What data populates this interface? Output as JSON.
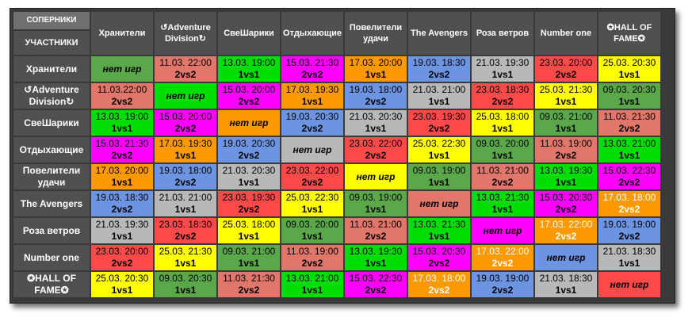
{
  "corner": {
    "top": "СОПЕРНИКИ",
    "bottom": "УЧАСТНИКИ"
  },
  "teams": [
    "Хранители",
    "↺Adventure Division↻",
    "СвеШарики",
    "Отдыхающие",
    "Повелители удачи",
    "The Avengers",
    "Роза ветров",
    "Number one",
    "✪HALL OF FAME✪"
  ],
  "no_games_label": "нет игр",
  "colors": {
    "green": "#00dd00",
    "darkgreen": "#5aa84a",
    "salmon": "#e0776a",
    "magenta": "#ff00ff",
    "orange": "#ff9900",
    "blue": "#6c94e0",
    "gray": "#b8b8b8",
    "red": "#ff4a4a",
    "yellow": "#ffff00",
    "header": "#505050"
  },
  "rows": [
    [
      {
        "t": "none",
        "c": "darkgreen"
      },
      {
        "d": "11.03. 22:00",
        "m": "2vs2",
        "c": "salmon"
      },
      {
        "d": "13.03. 19:00",
        "m": "1vs1",
        "c": "green"
      },
      {
        "d": "15.03. 21:30",
        "m": "2vs2",
        "c": "magenta"
      },
      {
        "d": "17.03. 20:00",
        "m": "1vs1",
        "c": "orange"
      },
      {
        "d": "19.03. 18:30",
        "m": "2vs2",
        "c": "blue"
      },
      {
        "d": "21.03. 19:30",
        "m": "1vs1",
        "c": "gray"
      },
      {
        "d": "23.03. 20:00",
        "m": "2vs2",
        "c": "red"
      },
      {
        "d": "25.03. 20:30",
        "m": "1vs1",
        "c": "yellow"
      }
    ],
    [
      {
        "d": "11.03.22:00",
        "m": "2vs2",
        "c": "salmon"
      },
      {
        "t": "none",
        "c": "green"
      },
      {
        "d": "15.03. 20:00",
        "m": "2vs2",
        "c": "magenta"
      },
      {
        "d": "17.03. 19:30",
        "m": "1vs1",
        "c": "orange"
      },
      {
        "d": "19.03. 18:00",
        "m": "2vs2",
        "c": "blue"
      },
      {
        "d": "21.03. 21:00",
        "m": "1vs1",
        "c": "gray"
      },
      {
        "d": "23.03. 18:30",
        "m": "2vs2",
        "c": "red"
      },
      {
        "d": "25.03. 21:30",
        "m": "1vs1",
        "c": "yellow"
      },
      {
        "d": "09.03. 20:30",
        "m": "1vs1",
        "c": "darkgreen"
      }
    ],
    [
      {
        "d": "13.03. 19:00",
        "m": "1vs1",
        "c": "green"
      },
      {
        "d": "15.03. 20:00",
        "m": "2vs2",
        "c": "magenta"
      },
      {
        "t": "none",
        "c": "orange"
      },
      {
        "d": "19.03. 20:30",
        "m": "2vs2",
        "c": "blue"
      },
      {
        "d": "21.03. 20:30",
        "m": "1vs1",
        "c": "gray"
      },
      {
        "d": "23.03. 19:30",
        "m": "2vs2",
        "c": "red"
      },
      {
        "d": "25.03. 18:00",
        "m": "1vs1",
        "c": "yellow"
      },
      {
        "d": "09.03. 21:00",
        "m": "1vs1",
        "c": "darkgreen"
      },
      {
        "d": "11.03. 21:30",
        "m": "2vs2",
        "c": "salmon"
      }
    ],
    [
      {
        "d": "15.03. 21:30",
        "m": "2vs2",
        "c": "magenta"
      },
      {
        "d": "17.03. 19:30",
        "m": "1vs1",
        "c": "orange"
      },
      {
        "d": "19.03. 20:30",
        "m": "2vs2",
        "c": "blue"
      },
      {
        "t": "none",
        "c": "gray"
      },
      {
        "d": "23.03. 22:00",
        "m": "2vs2",
        "c": "red"
      },
      {
        "d": "25.03. 22:30",
        "m": "1vs1",
        "c": "yellow"
      },
      {
        "d": "09.03. 20:00",
        "m": "1vs1",
        "c": "darkgreen"
      },
      {
        "d": "11.03. 19:00",
        "m": "2vs2",
        "c": "salmon"
      },
      {
        "d": "13.03. 21:00",
        "m": "1vs1",
        "c": "green"
      }
    ],
    [
      {
        "d": "17.03. 20:00",
        "m": "1vs1",
        "c": "orange"
      },
      {
        "d": "19.03. 18:00",
        "m": "2vs2",
        "c": "blue"
      },
      {
        "d": "21.03. 20:30",
        "m": "1vs1",
        "c": "gray"
      },
      {
        "d": "23.03. 22:00",
        "m": "2vs2",
        "c": "red"
      },
      {
        "t": "none",
        "c": "yellow"
      },
      {
        "d": "09.03. 19:00",
        "m": "1vs1",
        "c": "darkgreen"
      },
      {
        "d": "11.03. 21:00",
        "m": "2vs2",
        "c": "salmon"
      },
      {
        "d": "13.03. 19:30",
        "m": "1vs1",
        "c": "green"
      },
      {
        "d": "15.03. 22:30",
        "m": "2vs2",
        "c": "magenta"
      }
    ],
    [
      {
        "d": "19.03. 18:30",
        "m": "2vs2",
        "c": "blue"
      },
      {
        "d": "21.03. 21:00",
        "m": "1vs1",
        "c": "gray"
      },
      {
        "d": "23.03. 19:30",
        "m": "2vs2",
        "c": "red"
      },
      {
        "d": "25.03. 22:30",
        "m": "1vs1",
        "c": "yellow"
      },
      {
        "d": "09.03. 19:00",
        "m": "1vs1",
        "c": "darkgreen"
      },
      {
        "t": "none",
        "c": "salmon"
      },
      {
        "d": "13.03. 21:30",
        "m": "1vs1",
        "c": "green"
      },
      {
        "d": "15.03. 20:30",
        "m": "2vs2",
        "c": "magenta"
      },
      {
        "d": "17.03. 18:00",
        "m": "2vs2",
        "c": "orange",
        "w": true
      }
    ],
    [
      {
        "d": "21.03. 19:30",
        "m": "1vs1",
        "c": "gray"
      },
      {
        "d": "23.03. 18:30",
        "m": "2vs2",
        "c": "red"
      },
      {
        "d": "25.03. 18:00",
        "m": "1vs1",
        "c": "yellow"
      },
      {
        "d": "09.03. 20:00",
        "m": "1vs1",
        "c": "darkgreen"
      },
      {
        "d": "11.03. 21:00",
        "m": "2vs2",
        "c": "salmon"
      },
      {
        "d": "13.03. 21:30",
        "m": "1vs1",
        "c": "green"
      },
      {
        "t": "none",
        "c": "magenta"
      },
      {
        "d": "17.03. 22:00",
        "m": "2vs2",
        "c": "orange",
        "w": true
      },
      {
        "d": "19.03. 19:00",
        "m": "2vs2",
        "c": "blue"
      }
    ],
    [
      {
        "d": "23.03. 20:00",
        "m": "2vs2",
        "c": "red"
      },
      {
        "d": "25.03. 21:30",
        "m": "1vs1",
        "c": "yellow"
      },
      {
        "d": "09.03. 21:00",
        "m": "1vs1",
        "c": "darkgreen"
      },
      {
        "d": "11.03. 19:00",
        "m": "2vs2",
        "c": "salmon"
      },
      {
        "d": "13.03. 19:30",
        "m": "1vs1",
        "c": "green"
      },
      {
        "d": "15.03. 20:30",
        "m": "2vs2",
        "c": "magenta"
      },
      {
        "d": "17.03. 22:00",
        "m": "2vs2",
        "c": "orange",
        "w": true
      },
      {
        "t": "none",
        "c": "blue"
      },
      {
        "d": "21.03. 18:30",
        "m": "1vs1",
        "c": "gray"
      }
    ],
    [
      {
        "d": "25.03. 20:30",
        "m": "1vs1",
        "c": "yellow"
      },
      {
        "d": "09.03. 20:30",
        "m": "1vs1",
        "c": "darkgreen"
      },
      {
        "d": "11.03. 21:30",
        "m": "2vs2",
        "c": "salmon"
      },
      {
        "d": "13.03. 21:00",
        "m": "1vs1",
        "c": "green"
      },
      {
        "d": "15.03. 22:30",
        "m": "2vs2",
        "c": "magenta"
      },
      {
        "d": "17.03. 18:00",
        "m": "2vs2",
        "c": "orange",
        "w": true
      },
      {
        "d": "19.03. 19:00",
        "m": "2vs2",
        "c": "blue"
      },
      {
        "d": "21.03. 18:30",
        "m": "1vs1",
        "c": "gray"
      },
      {
        "t": "none",
        "c": "red"
      }
    ]
  ]
}
